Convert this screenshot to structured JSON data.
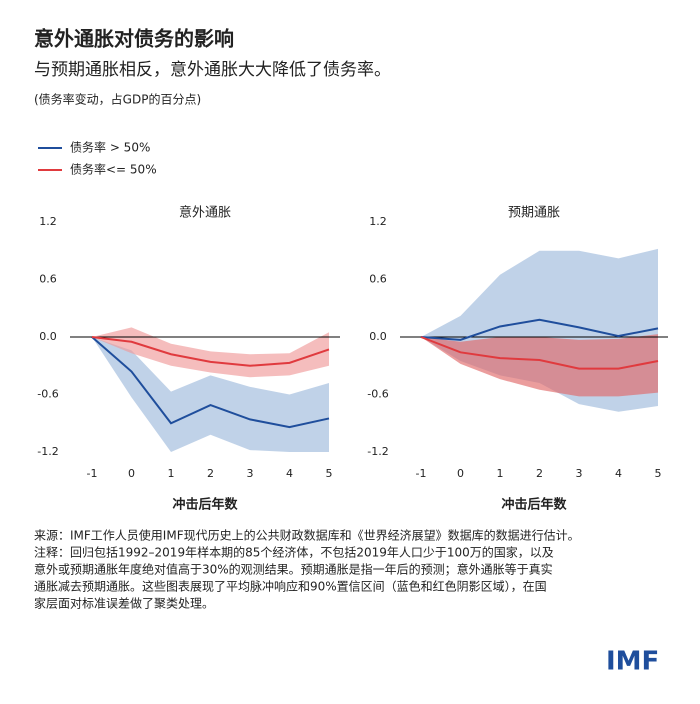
{
  "header": {
    "title": "意外通胀对债务的影响",
    "subtitle": "与预期通胀相反，意外通胀大大降低了债务率。",
    "unit": "(债务率变动，占GDP的百分点)"
  },
  "chart_data": [
    {
      "type": "line",
      "title": "意外通胀",
      "x": [
        -1,
        0,
        1,
        2,
        3,
        4,
        5
      ],
      "xlabel": "冲击后年数",
      "xlim": [
        -1,
        5
      ],
      "xticks": [
        -1,
        0,
        1,
        2,
        3,
        4,
        5
      ],
      "ylim": [
        -1.2,
        1.2
      ],
      "yticks": [
        -1.2,
        -0.6,
        {
          "value": 0,
          "label": "0.0"
        },
        0.6,
        1.2
      ],
      "series": [
        {
          "name": "债务率 > 50%",
          "color": "#1f4e9c",
          "band_color": "#b9cde5",
          "values": [
            0,
            -0.36,
            -0.9,
            -0.71,
            -0.86,
            -0.94,
            -0.85
          ],
          "lower": [
            0,
            -0.63,
            -1.2,
            -1.02,
            -1.18,
            -1.2,
            -1.2
          ],
          "upper": [
            0,
            -0.14,
            -0.57,
            -0.4,
            -0.52,
            -0.6,
            -0.48
          ]
        },
        {
          "name": "债务率<= 50%",
          "color": "#e03a3e",
          "band_color": "#f09a9a",
          "values": [
            0,
            -0.05,
            -0.18,
            -0.26,
            -0.3,
            -0.27,
            -0.13
          ],
          "lower": [
            0,
            -0.17,
            -0.3,
            -0.37,
            -0.42,
            -0.4,
            -0.3
          ],
          "upper": [
            0,
            0.1,
            -0.07,
            -0.15,
            -0.18,
            -0.17,
            0.05
          ]
        }
      ]
    },
    {
      "type": "line",
      "title": "预期通胀",
      "x": [
        -1,
        0,
        1,
        2,
        3,
        4,
        5
      ],
      "xlabel": "冲击后年数",
      "xlim": [
        -1,
        5
      ],
      "xticks": [
        -1,
        0,
        1,
        2,
        3,
        4,
        5
      ],
      "ylim": [
        -1.2,
        1.2
      ],
      "yticks": [
        -1.2,
        -0.6,
        {
          "value": 0,
          "label": "0.0"
        },
        0.6,
        1.2
      ],
      "series": [
        {
          "color": "#1f4e9c",
          "band_color": "#b9cde5",
          "values": [
            0,
            -0.03,
            0.11,
            0.18,
            0.1,
            0.01,
            0.09
          ],
          "lower": [
            0,
            -0.25,
            -0.4,
            -0.48,
            -0.7,
            -0.78,
            -0.72
          ],
          "upper": [
            0,
            0.22,
            0.65,
            0.9,
            0.9,
            0.82,
            0.92
          ]
        },
        {
          "color": "#e03a3e",
          "band_color": "#e06868",
          "values": [
            0,
            -0.16,
            -0.22,
            -0.24,
            -0.33,
            -0.33,
            -0.25
          ],
          "lower": [
            0,
            -0.28,
            -0.44,
            -0.55,
            -0.62,
            -0.62,
            -0.58
          ],
          "upper": [
            0,
            -0.05,
            0,
            0,
            -0.03,
            -0.02,
            0.03
          ]
        }
      ]
    }
  ],
  "notes": [
    "来源：IMF工作人员使用IMF现代历史上的公共财政数据库和《世界经济展望》数据库的数据进行估计。",
    "注释：回归包括1992–2019年样本期的85个经济体，不包括2019年人口少于100万的国家，以及",
    "意外或预期通胀年度绝对值高于30%的观测结果。预期通胀是指一年后的预测；意外通胀等于真实",
    "通胀减去预期通胀。这些图表展现了平均脉冲响应和90%置信区间（蓝色和红色阴影区域），在国",
    "家层面对标准误差做了聚类处理。"
  ],
  "logo": "IMF"
}
